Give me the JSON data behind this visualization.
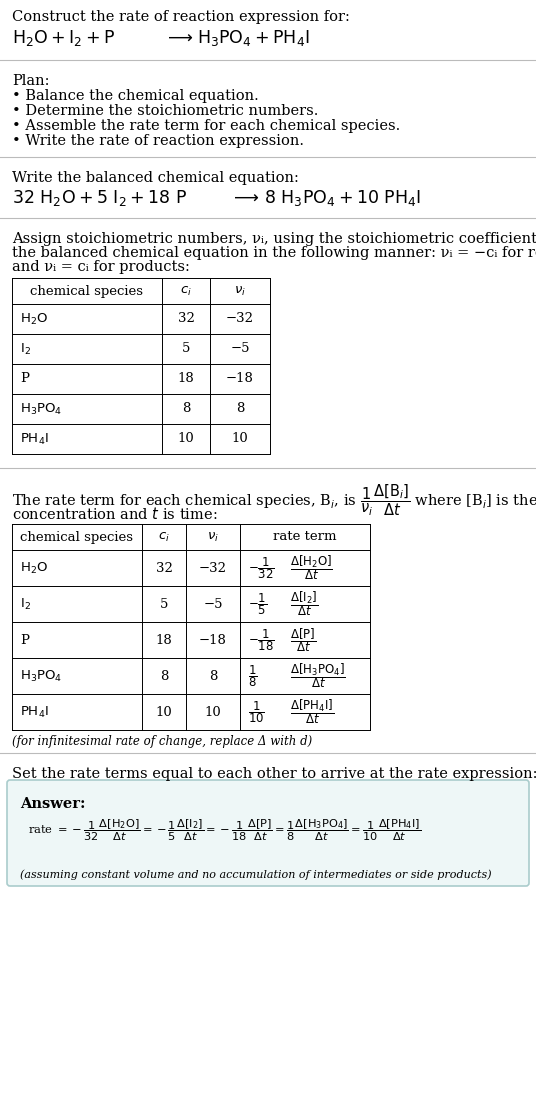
{
  "bg_color": "#ffffff",
  "text_color": "#000000",
  "title_line1": "Construct the rate of reaction expression for:",
  "plan_title": "Plan:",
  "plan_items": [
    "• Balance the chemical equation.",
    "• Determine the stoichiometric numbers.",
    "• Assemble the rate term for each chemical species.",
    "• Write the rate of reaction expression."
  ],
  "balanced_label": "Write the balanced chemical equation:",
  "stoich_para1": "Assign stoichiometric numbers, νᵢ, using the stoichiometric coefficients, cᵢ, from",
  "stoich_para2": "the balanced chemical equation in the following manner: νᵢ = −cᵢ for reactants",
  "stoich_para3": "and νᵢ = cᵢ for products:",
  "rate_para1": "The rate term for each chemical species, Bᵢ, is",
  "rate_para2": "where [Bᵢ] is the amount",
  "rate_para3": "concentration and t is time:",
  "footnote1": "(for infinitesimal rate of change, replace Δ with d)",
  "set_rate_text": "Set the rate terms equal to each other to arrive at the rate expression:",
  "answer_label": "Answer:",
  "answer_footnote": "(assuming constant volume and no accumulation of intermediates or side products)",
  "answer_box_bg": "#eef7f7",
  "answer_box_border": "#aacccc",
  "separator_color": "#bbbbbb",
  "table_border_color": "#000000",
  "t1_species": [
    "H₂O",
    "I₂",
    "P",
    "H₃PO₄",
    "PH₄I"
  ],
  "t1_ci": [
    "32",
    "5",
    "18",
    "8",
    "10"
  ],
  "t1_nu": [
    "−32",
    "−5",
    "−18",
    "8",
    "10"
  ]
}
